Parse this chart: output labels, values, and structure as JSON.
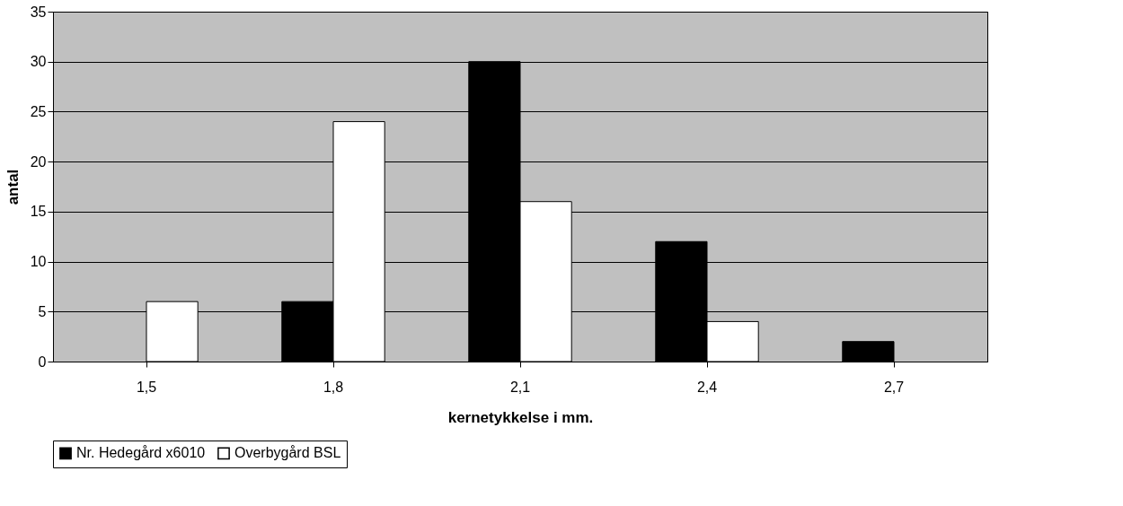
{
  "chart_data": {
    "type": "bar",
    "xlabel": "kernetykkelse i mm.",
    "ylabel": "antal",
    "categories": [
      "1,5",
      "1,8",
      "2,1",
      "2,4",
      "2,7"
    ],
    "series": [
      {
        "name": "Nr. Hedegård x6010",
        "color": "#000000",
        "values": [
          null,
          6,
          30,
          12,
          2
        ]
      },
      {
        "name": "Overbygård BSL",
        "color": "#ffffff",
        "values": [
          6,
          24,
          16,
          4,
          null
        ]
      }
    ],
    "ylim": [
      0,
      35
    ],
    "yticks": [
      0,
      5,
      10,
      15,
      20,
      25,
      30,
      35
    ],
    "grid": "y",
    "legend": "bottom"
  }
}
